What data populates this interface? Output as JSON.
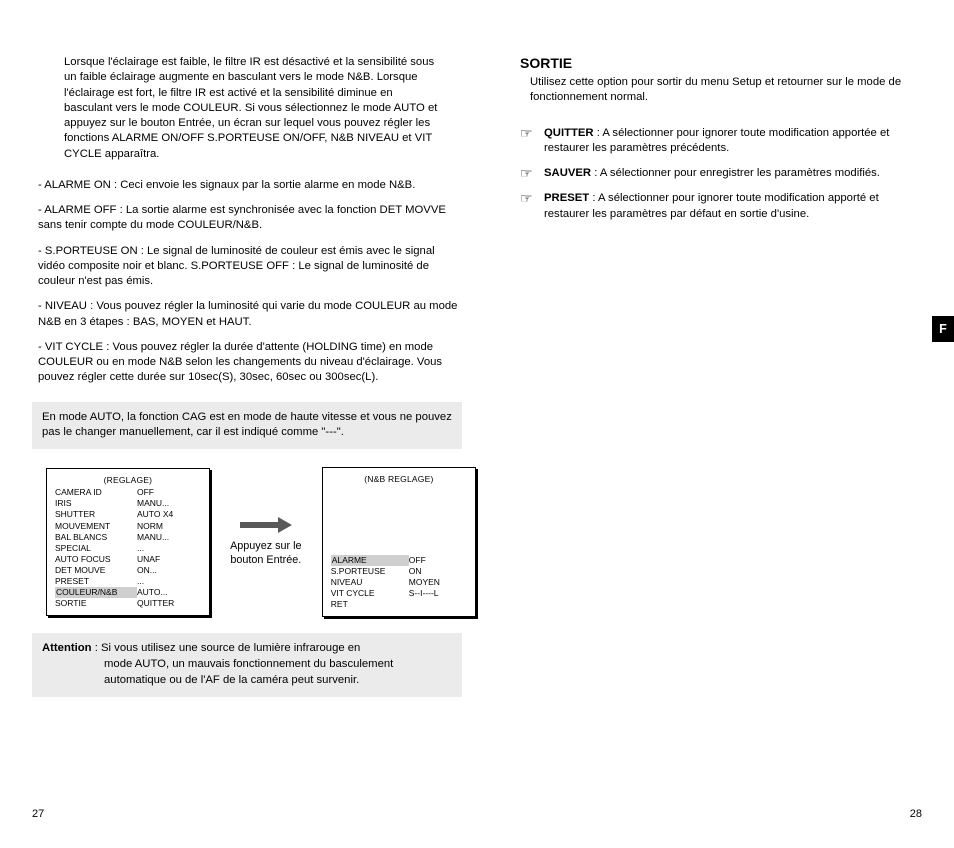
{
  "left": {
    "intro": "Lorsque l'éclairage est faible, le filtre IR est désactivé et la sensibilité sous un faible éclairage augmente en basculant vers le mode N&B. Lorsque l'éclairage est fort, le filtre IR est activé et la sensibilité diminue en basculant vers le mode COULEUR. Si vous sélectionnez le mode AUTO et appuyez sur le bouton Entrée, un écran sur lequel vous pouvez régler les fonctions ALARME ON/OFF  S.PORTEUSE ON/OFF, N&B NIVEAU et VIT CYCLE apparaîtra.",
    "bullets": [
      "- ALARME ON : Ceci envoie les signaux par la sortie alarme en mode N&B.",
      "- ALARME OFF : La sortie alarme est synchronisée avec la fonction DET MOVVE sans tenir compte du mode COULEUR/N&B.",
      "- S.PORTEUSE ON : Le signal de luminosité de couleur est émis avec le signal vidéo composite noir et blanc.  S.PORTEUSE OFF : Le signal de luminosité de couleur n'est pas émis.",
      "- NIVEAU : Vous pouvez régler la luminosité qui varie du mode COULEUR au mode N&B en 3 étapes : BAS, MOYEN et HAUT.",
      "- VIT CYCLE : Vous pouvez régler la durée d'attente (HOLDING time) en mode COULEUR ou en mode N&B selon les changements du niveau d'éclairage. Vous pouvez régler cette durée sur 10sec(S), 30sec, 60sec ou 300sec(L)."
    ],
    "note": "En mode AUTO, la fonction CAG est en mode de haute vitesse et vous ne pouvez pas le changer manuellement, car il est indiqué comme \"---\".",
    "menu1": {
      "title": "(REGLAGE)",
      "rows": [
        {
          "l": "CAMERA ID",
          "v": "OFF"
        },
        {
          "l": "IRIS",
          "v": "MANU..."
        },
        {
          "l": "SHUTTER",
          "v": "AUTO X4"
        },
        {
          "l": "MOUVEMENT",
          "v": "NORM"
        },
        {
          "l": "BAL BLANCS",
          "v": "MANU..."
        },
        {
          "l": "SPECIAL",
          "v": "..."
        },
        {
          "l": "AUTO FOCUS",
          "v": "UNAF"
        },
        {
          "l": "DET MOUVE",
          "v": "ON..."
        },
        {
          "l": "PRESET",
          "v": "..."
        },
        {
          "l": "COULEUR/N&B",
          "v": "AUTO...",
          "hl": true
        },
        {
          "l": "SORTIE",
          "v": "QUITTER"
        }
      ]
    },
    "arrow_caption": "Appuyez sur le bouton Entrée.",
    "menu2": {
      "title": "(N&B REGLAGE)",
      "rows": [
        {
          "l": "ALARME",
          "v": "OFF",
          "hl": true
        },
        {
          "l": "S.PORTEUSE",
          "v": "ON"
        },
        {
          "l": "NIVEAU",
          "v": "MOYEN"
        },
        {
          "l": "VIT CYCLE",
          "v": "S--I----L"
        },
        {
          "l": "RET",
          "v": ""
        }
      ]
    },
    "attention_label": "Attention",
    "attention_first": " : Si vous utilisez une source de lumière infrarouge en",
    "attention_rest": "mode AUTO, un mauvais fonctionnement du basculement automatique ou de l'AF de la caméra peut survenir.",
    "page_num": "27"
  },
  "right": {
    "title": "SORTIE",
    "body": "Utilisez cette option pour sortir du menu Setup et retourner sur le mode de fonctionnement normal.",
    "options": [
      {
        "label": "QUITTER",
        "text": " : A sélectionner pour ignorer toute modification apportée et restaurer les paramètres précédents."
      },
      {
        "label": "SAUVER",
        "text": " : A sélectionner pour enregistrer les paramètres modifiés."
      },
      {
        "label": "PRESET",
        "text": " : A sélectionner pour ignorer toute modification apporté et restaurer les paramètres par défaut en sortie d'usine."
      }
    ],
    "lang_tab": "F",
    "page_num": "28"
  },
  "colors": {
    "note_bg": "#ebebeb",
    "highlight_bg": "#cfcfcf"
  }
}
